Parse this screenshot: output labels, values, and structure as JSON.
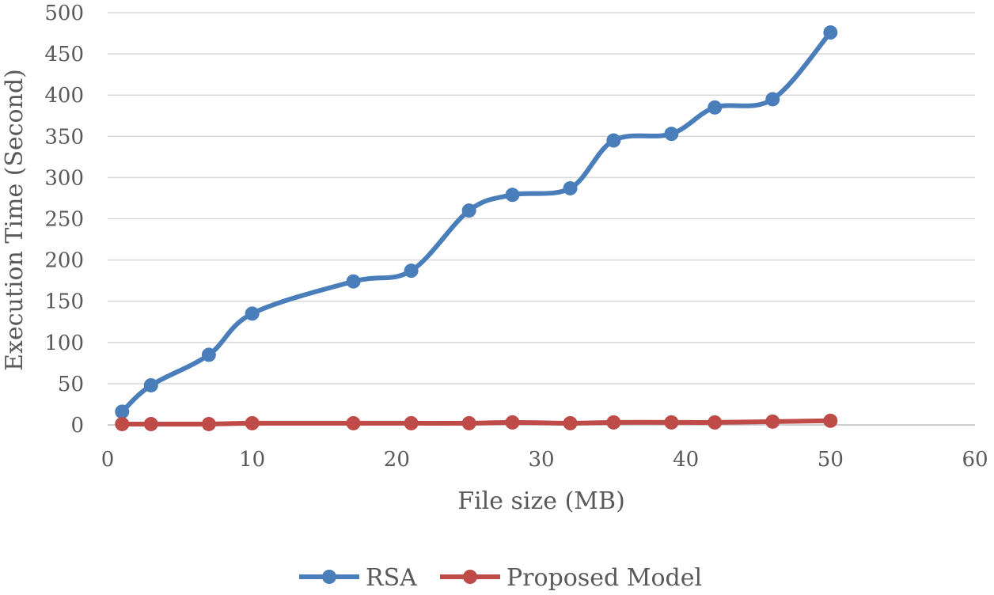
{
  "chart_data": {
    "type": "line",
    "title": "",
    "xlabel": "File size (MB)",
    "ylabel": "Execution Time (Second)",
    "xlim": [
      0,
      60
    ],
    "ylim": [
      0,
      500
    ],
    "xticks": [
      0,
      10,
      20,
      30,
      40,
      50,
      60
    ],
    "yticks": [
      0,
      50,
      100,
      150,
      200,
      250,
      300,
      350,
      400,
      450,
      500
    ],
    "grid": "horizontal",
    "smooth": true,
    "legend_position": "bottom",
    "series": [
      {
        "name": "RSA",
        "color": "#4a7ebb",
        "x": [
          1,
          3,
          7,
          10,
          17,
          21,
          25,
          28,
          32,
          35,
          39,
          42,
          46,
          50
        ],
        "y": [
          16,
          48,
          85,
          135,
          174,
          187,
          260,
          279,
          287,
          345,
          353,
          385,
          395,
          476
        ]
      },
      {
        "name": "Proposed Model",
        "color": "#be4b48",
        "x": [
          1,
          3,
          7,
          10,
          17,
          21,
          25,
          28,
          32,
          35,
          39,
          42,
          46,
          50
        ],
        "y": [
          1,
          1,
          1,
          2,
          2,
          2,
          2,
          3,
          2,
          3,
          3,
          3,
          4,
          5
        ]
      }
    ]
  }
}
